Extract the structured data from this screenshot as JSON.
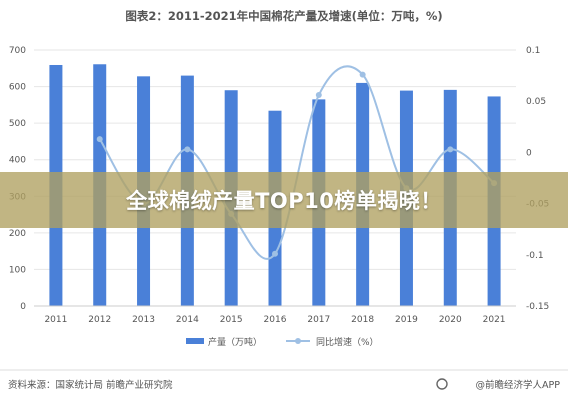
{
  "banner_title": "全球棉绒产量TOP10榜单揭晓！",
  "footer": {
    "source": "资料来源：国家统计局 前瞻产业研究院",
    "brand": "@前瞻经济学人APP"
  },
  "colors": {
    "bar": "#4a80d8",
    "line": "#9fc0e4",
    "text": "#555555",
    "grid": "#e6e6e6"
  },
  "chart_data": {
    "type": "bar",
    "title": "图表2：2011-2021年中国棉花产量及增速(单位：万吨，%)",
    "categories": [
      "2011",
      "2012",
      "2013",
      "2014",
      "2015",
      "2016",
      "2017",
      "2018",
      "2019",
      "2020",
      "2021"
    ],
    "ylim": [
      0,
      700
    ],
    "y_ticks": [
      0,
      100,
      200,
      300,
      400,
      500,
      600,
      700
    ],
    "y2lim": [
      -0.15,
      0.1
    ],
    "y2_ticks": [
      "0.1",
      "0.05",
      "0",
      "-0.05",
      "-0.1",
      "-0.15"
    ],
    "legend_position": "bottom-center",
    "series": [
      {
        "name": "产量（万吨）",
        "type": "bar",
        "axis": "left",
        "values": [
          659,
          661,
          628,
          630,
          590,
          534,
          565,
          610,
          589,
          591,
          573
        ]
      },
      {
        "name": "同比增速（%）",
        "type": "line",
        "axis": "right",
        "values": [
          null,
          0.013,
          -0.05,
          0.003,
          -0.06,
          -0.099,
          0.056,
          0.076,
          -0.035,
          0.003,
          -0.03
        ]
      }
    ]
  }
}
